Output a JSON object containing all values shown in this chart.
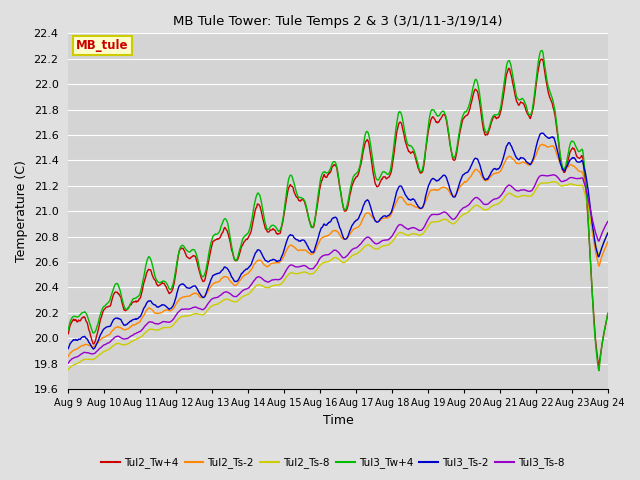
{
  "title": "MB Tule Tower: Tule Temps 2 & 3 (3/1/11-3/19/14)",
  "xlabel": "Time",
  "ylabel": "Temperature (C)",
  "ylim": [
    19.6,
    22.4
  ],
  "background_color": "#e0e0e0",
  "plot_bg_color": "#d4d4d4",
  "grid_color": "#ffffff",
  "x_labels": [
    "Aug 9",
    "Aug 10",
    "Aug 11",
    "Aug 12",
    "Aug 13",
    "Aug 14",
    "Aug 15",
    "Aug 16",
    "Aug 17",
    "Aug 18",
    "Aug 19",
    "Aug 20",
    "Aug 21",
    "Aug 22",
    "Aug 23",
    "Aug 24"
  ],
  "series": {
    "Tul2_Tw+4": {
      "color": "#cc0000",
      "lw": 1.0
    },
    "Tul2_Ts-2": {
      "color": "#ff8800",
      "lw": 1.0
    },
    "Tul2_Ts-8": {
      "color": "#cccc00",
      "lw": 1.0
    },
    "Tul3_Tw+4": {
      "color": "#00bb00",
      "lw": 1.0
    },
    "Tul3_Ts-2": {
      "color": "#0000cc",
      "lw": 1.0
    },
    "Tul3_Ts-8": {
      "color": "#9900cc",
      "lw": 1.0
    }
  },
  "annotation_box": {
    "text": "MB_tule",
    "color": "#cc0000",
    "bg": "#ffffcc",
    "ec": "#cccc00"
  },
  "n_points": 800
}
